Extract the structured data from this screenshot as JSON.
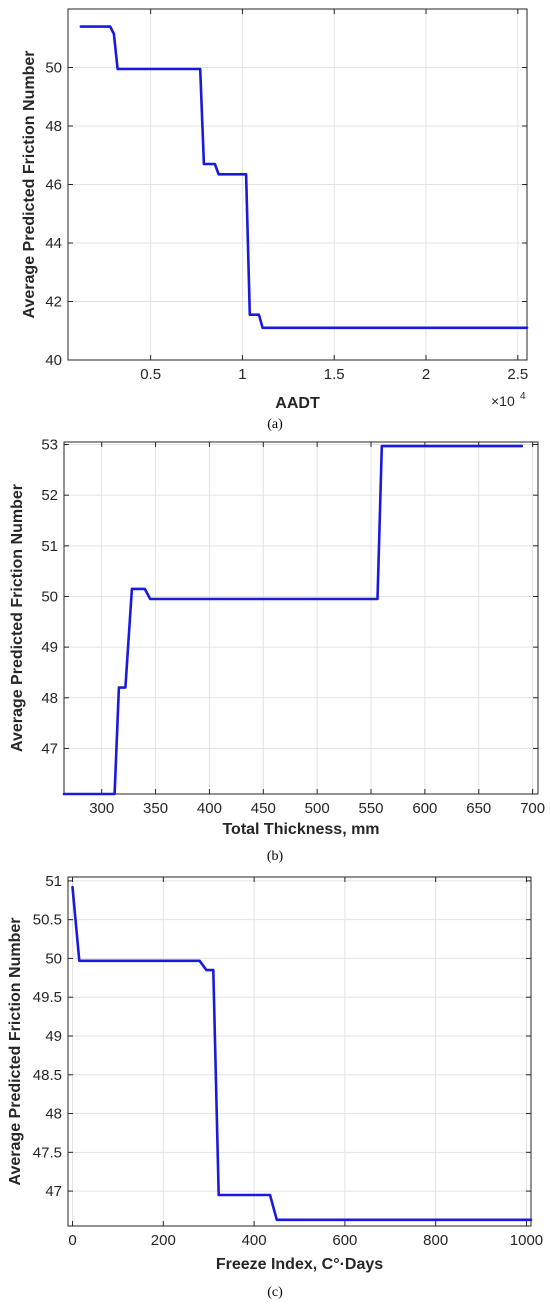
{
  "chart_data": [
    {
      "type": "line",
      "caption": "(a)",
      "xlabel": "AADT",
      "ylabel": "Average Predicted Friction Number",
      "x_multiplier": "×10",
      "x_multiplier_exp": "4",
      "xlim": [
        0.05,
        2.55
      ],
      "ylim": [
        40,
        52
      ],
      "x_ticks": [
        0.5,
        1,
        1.5,
        2,
        2.5
      ],
      "x_tick_labels": [
        "0.5",
        "1",
        "1.5",
        "2",
        "2.5"
      ],
      "y_ticks": [
        40,
        42,
        44,
        46,
        48,
        50
      ],
      "y_tick_labels": [
        "40",
        "42",
        "44",
        "46",
        "48",
        "50"
      ],
      "grid": true,
      "color": "#1a1adc",
      "series": [
        {
          "x": [
            0.12,
            0.28,
            0.3,
            0.32,
            0.77,
            0.79,
            0.8,
            0.85,
            0.87,
            1.02,
            1.04,
            1.09,
            1.11,
            2.55
          ],
          "y": [
            51.4,
            51.4,
            51.15,
            49.95,
            49.95,
            46.7,
            46.7,
            46.7,
            46.35,
            46.35,
            41.55,
            41.55,
            41.1,
            41.1
          ]
        }
      ]
    },
    {
      "type": "line",
      "caption": "(b)",
      "xlabel": "Total Thickness, mm",
      "ylabel": "Average Predicted Friction Number",
      "xlim": [
        265,
        705
      ],
      "ylim": [
        46.1,
        53.05
      ],
      "x_ticks": [
        300,
        350,
        400,
        450,
        500,
        550,
        600,
        650,
        700
      ],
      "x_tick_labels": [
        "300",
        "350",
        "400",
        "450",
        "500",
        "550",
        "600",
        "650",
        "700"
      ],
      "y_ticks": [
        47,
        48,
        49,
        50,
        51,
        52,
        53
      ],
      "y_tick_labels": [
        "47",
        "48",
        "49",
        "50",
        "51",
        "52",
        "53"
      ],
      "grid": true,
      "color": "#1a1adc",
      "series": [
        {
          "x": [
            265,
            312,
            316,
            322,
            328,
            340,
            345,
            556,
            560,
            690
          ],
          "y": [
            46.1,
            46.1,
            48.2,
            48.2,
            50.15,
            50.15,
            49.95,
            49.95,
            52.97,
            52.97
          ]
        }
      ]
    },
    {
      "type": "line",
      "caption": "(c)",
      "xlabel": "Freeze Index, C°·Days",
      "ylabel": "Average Predicted Friction Number",
      "xlim": [
        -10,
        1010
      ],
      "ylim": [
        46.55,
        51.05
      ],
      "x_ticks": [
        0,
        200,
        400,
        600,
        800,
        1000
      ],
      "x_tick_labels": [
        "0",
        "200",
        "400",
        "600",
        "800",
        "1000"
      ],
      "y_ticks": [
        47,
        47.5,
        48,
        48.5,
        49,
        49.5,
        50,
        50.5,
        51
      ],
      "y_tick_labels": [
        "47",
        "47.5",
        "48",
        "48.5",
        "49",
        "49.5",
        "50",
        "50.5",
        "51"
      ],
      "grid": true,
      "color": "#1a1adc",
      "series": [
        {
          "x": [
            0,
            15,
            280,
            295,
            310,
            322,
            435,
            450,
            1010
          ],
          "y": [
            50.92,
            49.97,
            49.97,
            49.85,
            49.85,
            46.95,
            46.95,
            46.63,
            46.63
          ]
        }
      ]
    }
  ]
}
